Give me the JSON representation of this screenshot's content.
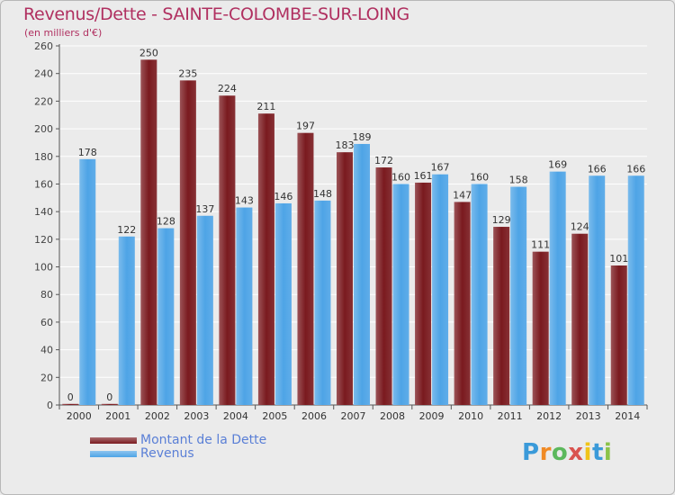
{
  "header": {
    "title": "Revenus/Dette - SAINTE-COLOMBE-SUR-LOING",
    "subtitle": "(en milliers d'€)"
  },
  "chart_data": {
    "type": "bar",
    "title": "Revenus/Dette - SAINTE-COLOMBE-SUR-LOING",
    "ylabel": "(en milliers d'€)",
    "xlabel": "",
    "ylim": [
      0,
      260
    ],
    "yticks": [
      0,
      20,
      40,
      60,
      80,
      100,
      120,
      140,
      160,
      180,
      200,
      220,
      240,
      260
    ],
    "grid": true,
    "categories": [
      "2000",
      "2001",
      "2002",
      "2003",
      "2004",
      "2005",
      "2006",
      "2007",
      "2008",
      "2009",
      "2010",
      "2011",
      "2012",
      "2013",
      "2014"
    ],
    "series": [
      {
        "name": "Montant de la Dette",
        "color": "#7a1a1f",
        "values": [
          0,
          0,
          250,
          235,
          224,
          211,
          197,
          183,
          172,
          161,
          147,
          129,
          111,
          124,
          101
        ]
      },
      {
        "name": "Revenus",
        "color": "#4ea4e6",
        "values": [
          178,
          122,
          128,
          137,
          143,
          146,
          148,
          189,
          160,
          167,
          160,
          158,
          169,
          166,
          166
        ]
      }
    ],
    "legend_position": "bottom-left"
  },
  "legend": {
    "items": [
      {
        "label": "Montant de la Dette",
        "color": "#7a1a1f"
      },
      {
        "label": "Revenus",
        "color": "#4ea4e6"
      }
    ]
  },
  "logo": {
    "letters": [
      "P",
      "r",
      "o",
      "x",
      "i",
      "t",
      "i"
    ],
    "colors": [
      "#3a9ad9",
      "#f08a24",
      "#5cb85c",
      "#d9534f",
      "#f0c419",
      "#3a9ad9",
      "#8bc34a"
    ]
  }
}
